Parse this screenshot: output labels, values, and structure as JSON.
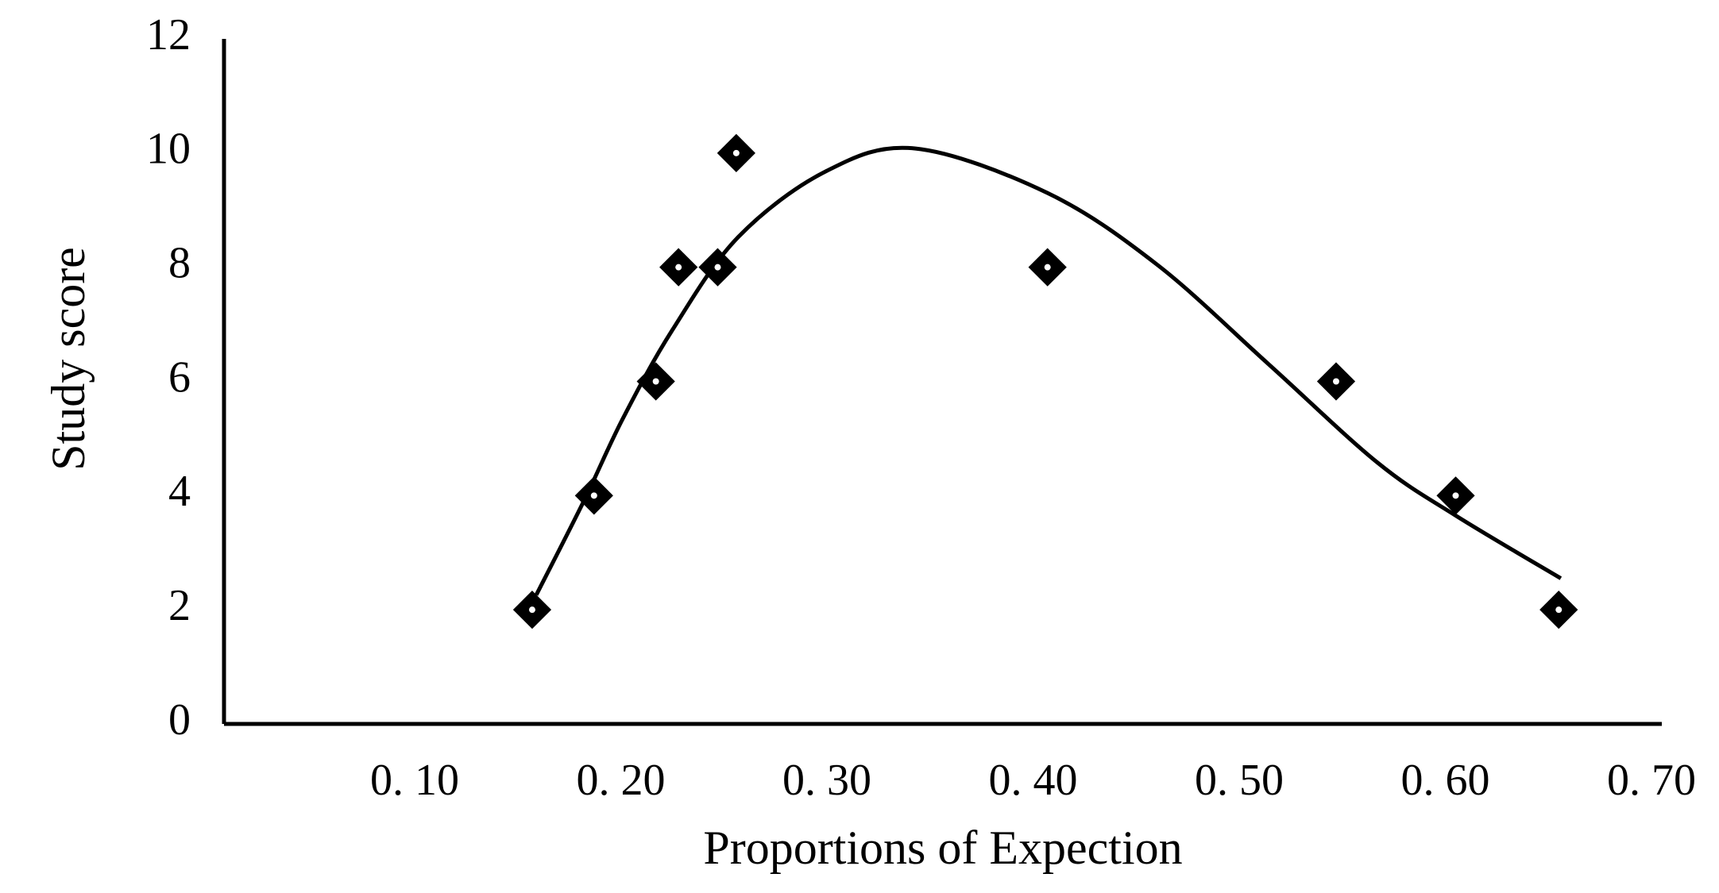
{
  "chart_data": {
    "type": "scatter",
    "x_label": "Proportions of Expection",
    "y_label": "Study score",
    "x": [
      0.157,
      0.187,
      0.217,
      0.228,
      0.247,
      0.256,
      0.407,
      0.547,
      0.605,
      0.655
    ],
    "values": [
      2,
      4,
      6,
      8,
      8,
      10,
      8,
      6,
      4,
      2
    ],
    "color": "#000000",
    "trend": {
      "x": [
        0.159,
        0.182,
        0.201,
        0.225,
        0.257,
        0.3,
        0.343,
        0.407,
        0.46,
        0.514,
        0.567,
        0.605,
        0.656
      ],
      "values": [
        2.26,
        3.9,
        5.35,
        6.9,
        8.53,
        9.69,
        10.08,
        9.3,
        8.05,
        6.31,
        4.58,
        3.65,
        2.55
      ]
    },
    "xlim": [
      0.0075,
      0.705
    ],
    "ylim": [
      0,
      12
    ],
    "xticks": [
      {
        "value": 0.1,
        "label": "0. 10"
      },
      {
        "value": 0.2,
        "label": "0. 20"
      },
      {
        "value": 0.3,
        "label": "0. 30"
      },
      {
        "value": 0.4,
        "label": "0. 40"
      },
      {
        "value": 0.5,
        "label": "0. 50"
      },
      {
        "value": 0.6,
        "label": "0. 60"
      },
      {
        "value": 0.7,
        "label": "0. 70"
      }
    ],
    "yticks": [
      0,
      2,
      4,
      6,
      8,
      10,
      12
    ],
    "grid": false
  }
}
